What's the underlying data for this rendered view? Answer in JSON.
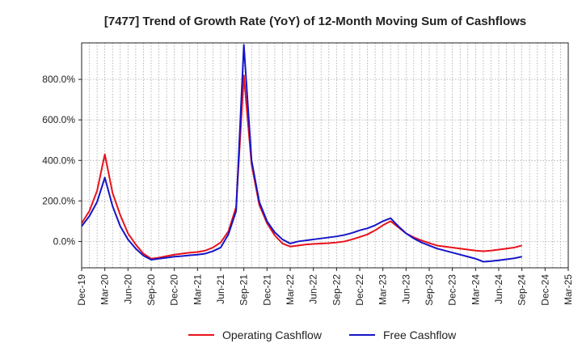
{
  "chart_data": {
    "type": "line",
    "title": "[7477]  Trend of Growth Rate (YoY) of 12-Month Moving Sum of Cashflows",
    "xlabel": "",
    "ylabel": "",
    "x": [
      "Dec-19",
      "Jan-20",
      "Feb-20",
      "Mar-20",
      "Apr-20",
      "May-20",
      "Jun-20",
      "Jul-20",
      "Aug-20",
      "Sep-20",
      "Oct-20",
      "Nov-20",
      "Dec-20",
      "Jan-21",
      "Feb-21",
      "Mar-21",
      "Apr-21",
      "May-21",
      "Jun-21",
      "Jul-21",
      "Aug-21",
      "Sep-21",
      "Oct-21",
      "Nov-21",
      "Dec-21",
      "Jan-22",
      "Feb-22",
      "Mar-22",
      "Apr-22",
      "May-22",
      "Jun-22",
      "Jul-22",
      "Aug-22",
      "Sep-22",
      "Oct-22",
      "Nov-22",
      "Dec-22",
      "Jan-23",
      "Feb-23",
      "Mar-23",
      "Apr-23",
      "May-23",
      "Jun-23",
      "Jul-23",
      "Aug-23",
      "Sep-23",
      "Oct-23",
      "Nov-23",
      "Dec-23",
      "Jan-24",
      "Feb-24",
      "Mar-24",
      "Apr-24",
      "May-24",
      "Jun-24",
      "Jul-24",
      "Aug-24",
      "Sep-24"
    ],
    "x_tick_labels": [
      "Dec-19",
      "Mar-20",
      "Jun-20",
      "Sep-20",
      "Dec-20",
      "Mar-21",
      "Jun-21",
      "Sep-21",
      "Dec-21",
      "Mar-22",
      "Jun-22",
      "Sep-22",
      "Dec-22",
      "Mar-23",
      "Jun-23",
      "Sep-23",
      "Dec-23",
      "Mar-24",
      "Jun-24",
      "Sep-24",
      "Dec-24",
      "Mar-25"
    ],
    "y_ticks": [
      0,
      200,
      400,
      600,
      800
    ],
    "y_tick_labels": [
      "0.0%",
      "200.0%",
      "400.0%",
      "600.0%",
      "800.0%"
    ],
    "ylim": [
      -130,
      980
    ],
    "grid": true,
    "legend_position": "bottom",
    "series": [
      {
        "name": "Operating Cashflow",
        "color": "#e8121b",
        "values": [
          90,
          150,
          250,
          430,
          240,
          130,
          40,
          -15,
          -60,
          -85,
          -80,
          -72,
          -65,
          -60,
          -55,
          -52,
          -45,
          -30,
          -5,
          50,
          170,
          820,
          380,
          180,
          90,
          30,
          -10,
          -25,
          -20,
          -15,
          -12,
          -10,
          -8,
          -5,
          0,
          10,
          22,
          35,
          55,
          80,
          100,
          70,
          40,
          20,
          5,
          -8,
          -20,
          -25,
          -30,
          -35,
          -40,
          -45,
          -48,
          -45,
          -40,
          -35,
          -30,
          -20
        ]
      },
      {
        "name": "Free Cashflow",
        "color": "#1515c8",
        "values": [
          75,
          125,
          195,
          315,
          175,
          75,
          10,
          -35,
          -70,
          -90,
          -85,
          -80,
          -75,
          -72,
          -68,
          -65,
          -60,
          -48,
          -30,
          35,
          150,
          970,
          400,
          195,
          100,
          45,
          10,
          -10,
          0,
          5,
          10,
          15,
          20,
          25,
          32,
          42,
          55,
          65,
          80,
          100,
          115,
          75,
          40,
          15,
          -5,
          -20,
          -35,
          -45,
          -55,
          -65,
          -75,
          -85,
          -100,
          -97,
          -93,
          -88,
          -83,
          -75
        ]
      }
    ]
  }
}
